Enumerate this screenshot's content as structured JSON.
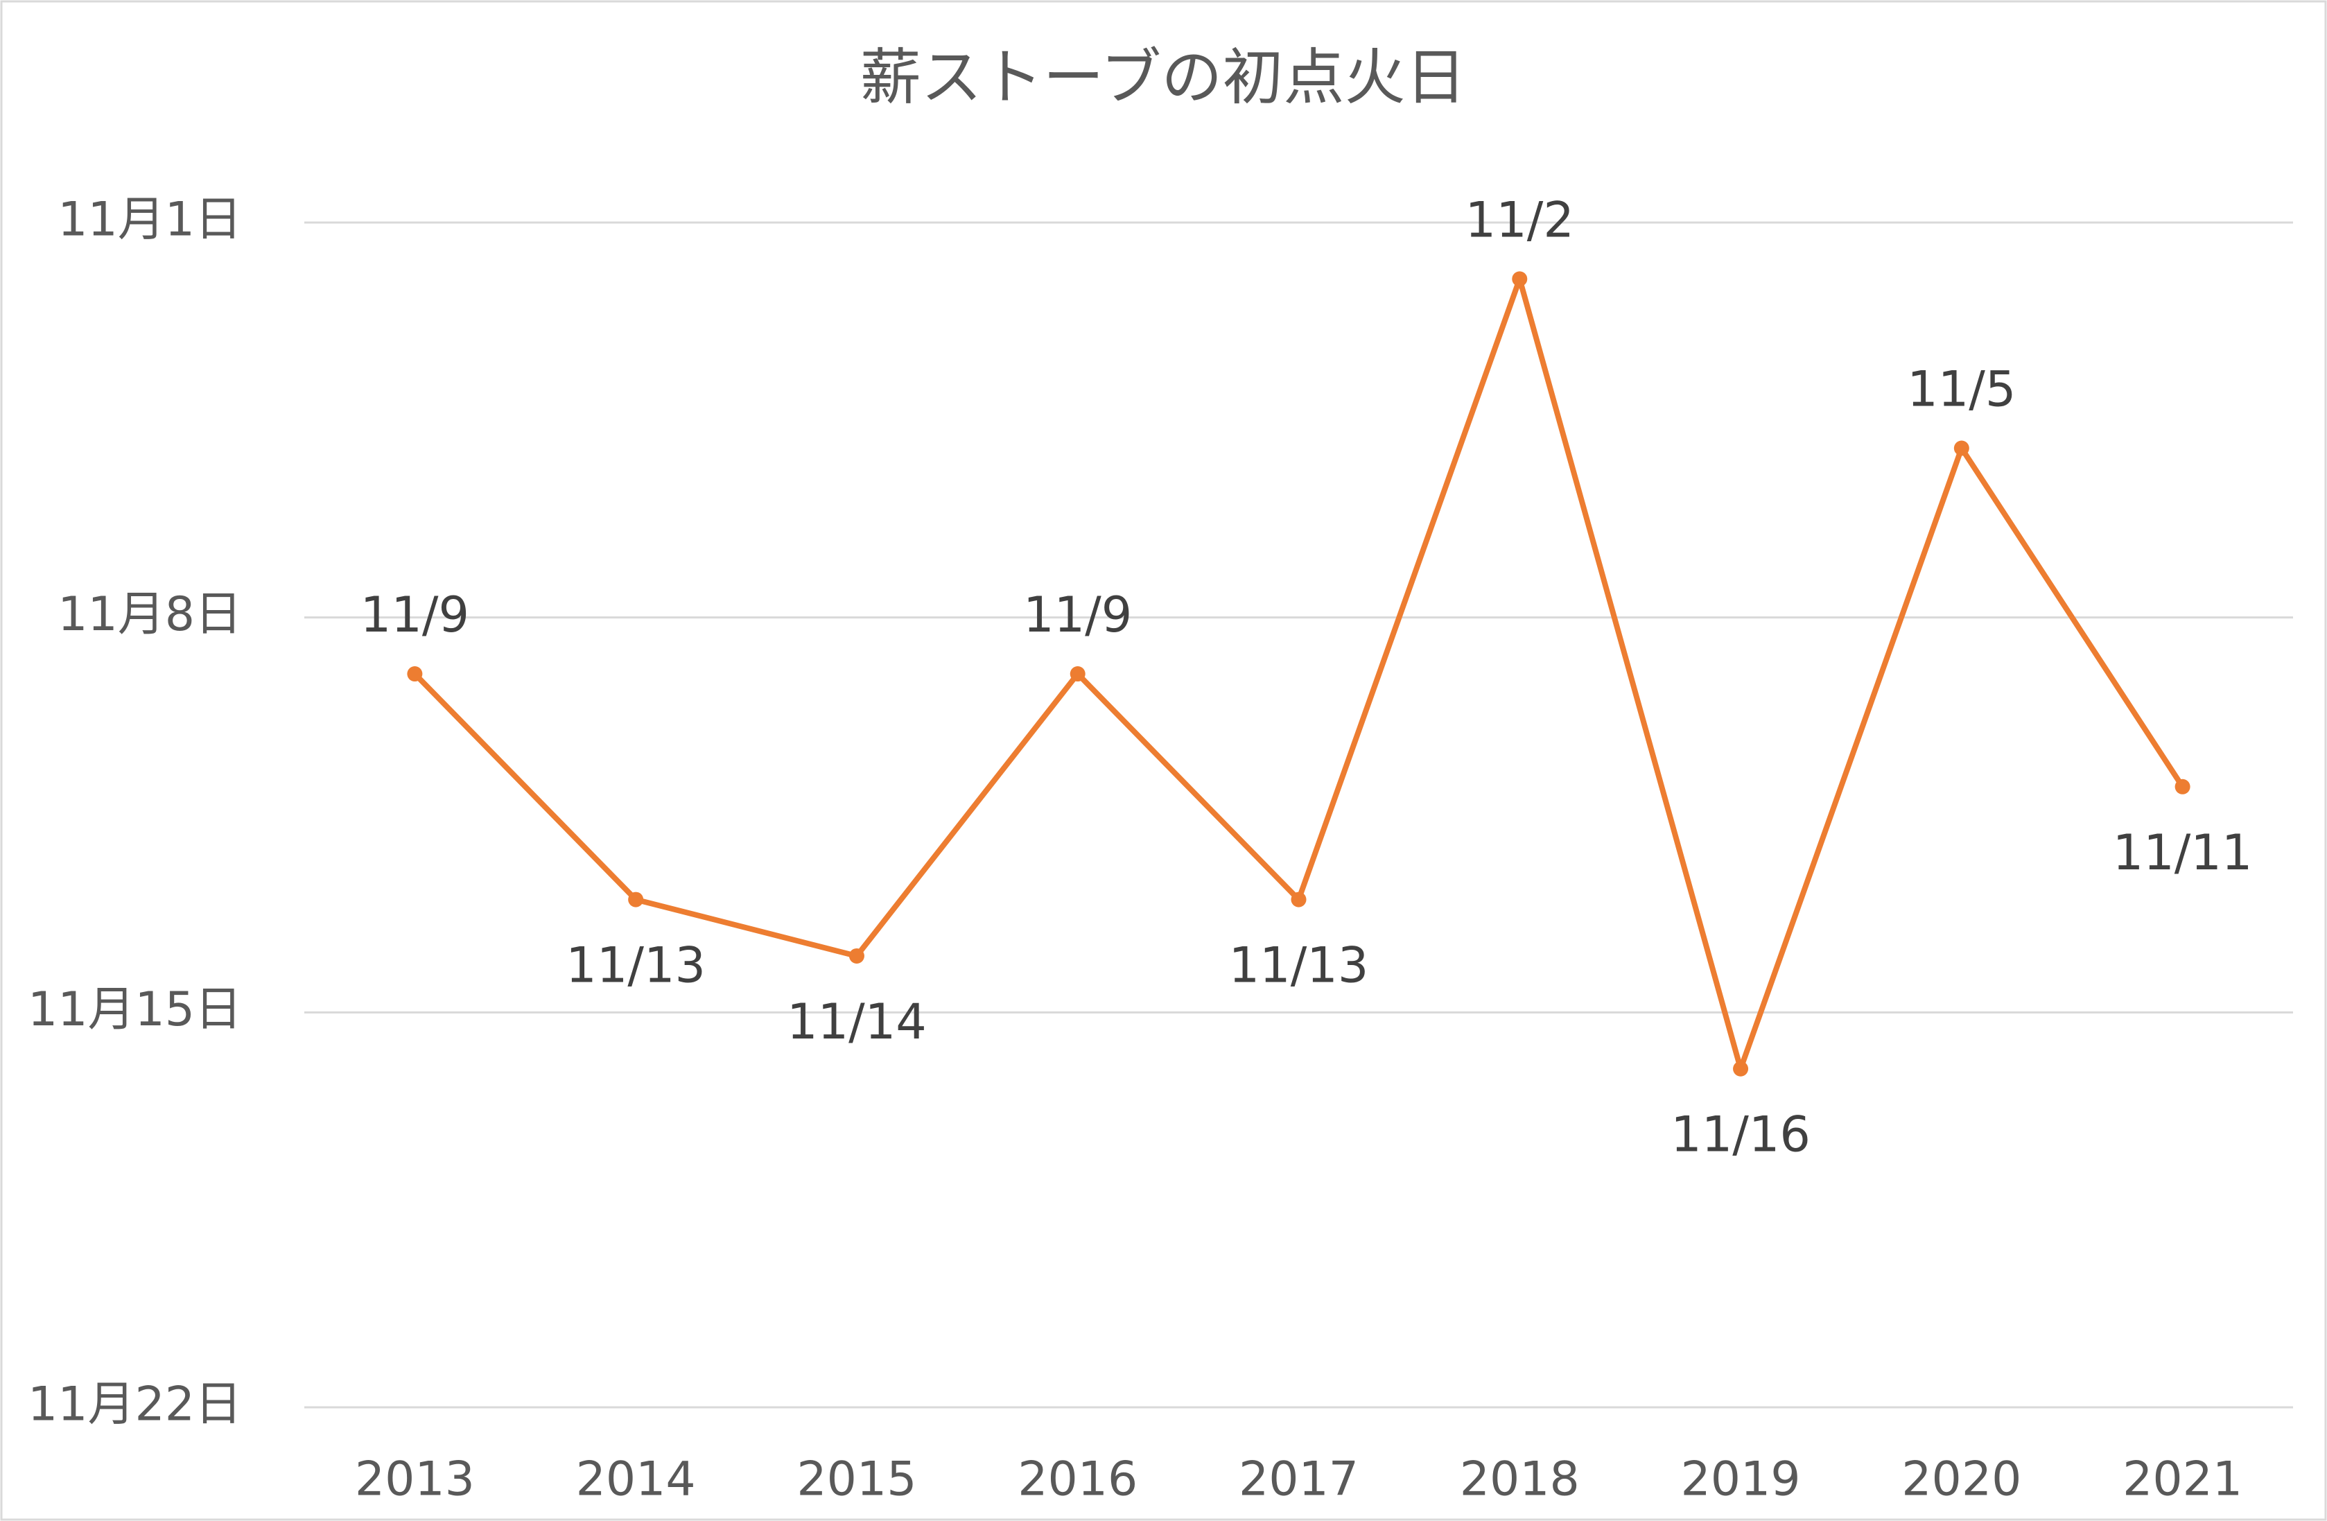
{
  "chart_data": {
    "type": "line",
    "title": "薪ストーブの初点火日",
    "categories": [
      "2013",
      "2014",
      "2015",
      "2016",
      "2017",
      "2018",
      "2019",
      "2020",
      "2021"
    ],
    "values": [
      9,
      13,
      14,
      9,
      13,
      2,
      16,
      5,
      11
    ],
    "value_labels": [
      "11/9",
      "11/13",
      "11/14",
      "11/9",
      "11/13",
      "11/2",
      "11/16",
      "11/5",
      "11/11"
    ],
    "color": "#ED7D31",
    "ylim": [
      1,
      22
    ],
    "y_inverted": true,
    "yticks": [
      {
        "value": 1,
        "label": "11月1日"
      },
      {
        "value": 8,
        "label": "11月8日"
      },
      {
        "value": 15,
        "label": "11月15日"
      },
      {
        "value": 22,
        "label": "11月22日"
      }
    ],
    "grid": true
  }
}
